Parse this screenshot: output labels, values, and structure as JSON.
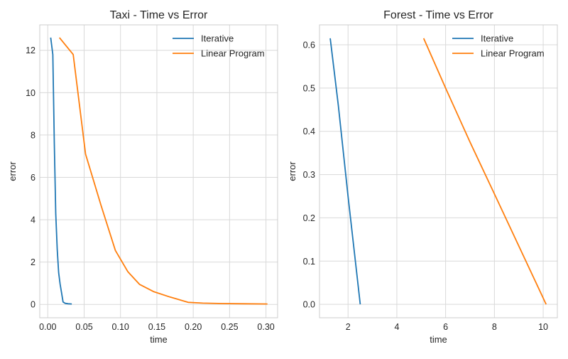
{
  "chart_data": [
    {
      "type": "line",
      "title": "Taxi - Time vs Error",
      "xlabel": "time",
      "ylabel": "error",
      "xlim": [
        -0.011,
        0.316
      ],
      "ylim": [
        -0.63,
        13.2
      ],
      "xticks": [
        0.0,
        0.05,
        0.1,
        0.15,
        0.2,
        0.25,
        0.3
      ],
      "xtick_labels": [
        "0.00",
        "0.05",
        "0.10",
        "0.15",
        "0.20",
        "0.25",
        "0.30"
      ],
      "yticks": [
        0,
        2,
        4,
        6,
        8,
        10,
        12
      ],
      "ytick_labels": [
        "0",
        "2",
        "4",
        "6",
        "8",
        "10",
        "12"
      ],
      "grid": true,
      "legend_position": "top-right",
      "series": [
        {
          "name": "Iterative",
          "color": "#1f77b4",
          "x": [
            0.004,
            0.007,
            0.009,
            0.011,
            0.013,
            0.015,
            0.017,
            0.019,
            0.021,
            0.024,
            0.028,
            0.033
          ],
          "y": [
            12.6,
            11.8,
            7.6,
            4.3,
            2.6,
            1.5,
            0.95,
            0.55,
            0.12,
            0.05,
            0.03,
            0.02
          ]
        },
        {
          "name": "Linear Program",
          "color": "#ff7f0e",
          "x": [
            0.016,
            0.035,
            0.052,
            0.073,
            0.093,
            0.11,
            0.126,
            0.146,
            0.168,
            0.193,
            0.213,
            0.24,
            0.27,
            0.302
          ],
          "y": [
            12.6,
            11.8,
            7.1,
            4.7,
            2.55,
            1.55,
            0.95,
            0.6,
            0.35,
            0.1,
            0.06,
            0.04,
            0.03,
            0.02
          ]
        }
      ]
    },
    {
      "type": "line",
      "title": "Forest - Time vs Error",
      "xlabel": "time",
      "ylabel": "error",
      "xlim": [
        0.83,
        10.58
      ],
      "ylim": [
        -0.031,
        0.646
      ],
      "xticks": [
        2,
        4,
        6,
        8,
        10
      ],
      "xtick_labels": [
        "2",
        "4",
        "6",
        "8",
        "10"
      ],
      "yticks": [
        0.0,
        0.1,
        0.2,
        0.3,
        0.4,
        0.5,
        0.6
      ],
      "ytick_labels": [
        "0.0",
        "0.1",
        "0.2",
        "0.3",
        "0.4",
        "0.5",
        "0.6"
      ],
      "grid": true,
      "legend_position": "top-right",
      "series": [
        {
          "name": "Iterative",
          "color": "#1f77b4",
          "x": [
            1.27,
            1.6,
            2.0,
            2.5
          ],
          "y": [
            0.615,
            0.46,
            0.25,
            0.0
          ]
        },
        {
          "name": "Linear Program",
          "color": "#ff7f0e",
          "x": [
            5.1,
            6.0,
            7.0,
            8.0,
            9.0,
            10.12
          ],
          "y": [
            0.615,
            0.5,
            0.375,
            0.255,
            0.135,
            0.0
          ]
        }
      ]
    }
  ]
}
